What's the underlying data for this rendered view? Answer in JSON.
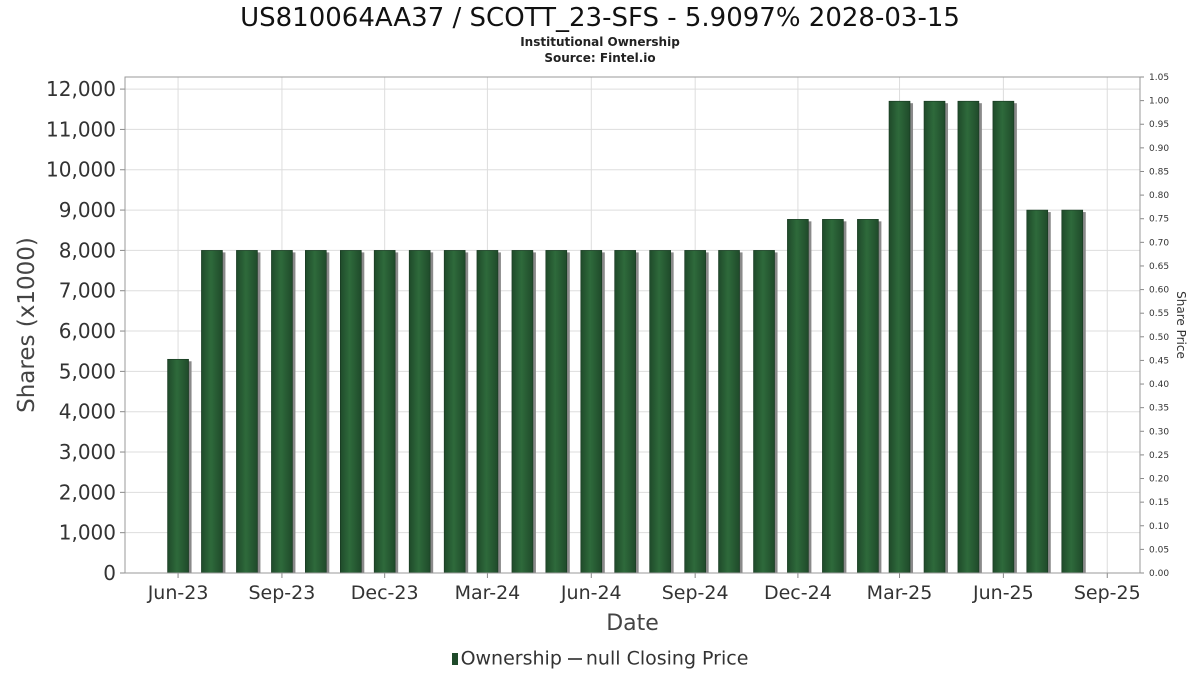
{
  "header": {
    "title": "US810064AA37 / SCOTT_23-SFS - 5.9097% 2028-03-15",
    "subtitle": "Institutional Ownership",
    "source": "Source: Fintel.io"
  },
  "legend": {
    "ownership_label": "Ownership",
    "price_label": "null Closing Price"
  },
  "colors": {
    "bar": "#1f4a2a",
    "bar_highlight": "#2e6a3b",
    "bar_shadow": "#8a8a8a",
    "grid": "#dddddd"
  },
  "chart_data": {
    "type": "bar",
    "title": "US810064AA37 / SCOTT_23-SFS - 5.9097% 2028-03-15",
    "subtitle": "Institutional Ownership",
    "xlabel": "Date",
    "ylabel": "Shares (x1000)",
    "y2label": "Share Price",
    "ylim": [
      0,
      12300
    ],
    "y2lim": [
      0,
      1.05
    ],
    "xlim": [
      "2023-04-15",
      "2025-09-30"
    ],
    "grid": true,
    "legend_position": "bottom",
    "yticks": [
      0,
      1000,
      2000,
      3000,
      4000,
      5000,
      6000,
      7000,
      8000,
      9000,
      10000,
      11000,
      12000
    ],
    "ytick_labels": [
      "0",
      "1,000",
      "2,000",
      "3,000",
      "4,000",
      "5,000",
      "6,000",
      "7,000",
      "8,000",
      "9,000",
      "10,000",
      "11,000",
      "12,000"
    ],
    "y2ticks": [
      0,
      0.05,
      0.1,
      0.15,
      0.2,
      0.25,
      0.3,
      0.35,
      0.4,
      0.45,
      0.5,
      0.55,
      0.6,
      0.65,
      0.7,
      0.75,
      0.8,
      0.85,
      0.9,
      0.95,
      1.0,
      1.05
    ],
    "y2tick_labels": [
      "0.00",
      "0.05",
      "0.10",
      "0.15",
      "0.20",
      "0.25",
      "0.30",
      "0.35",
      "0.40",
      "0.45",
      "0.50",
      "0.55",
      "0.60",
      "0.65",
      "0.70",
      "0.75",
      "0.80",
      "0.85",
      "0.90",
      "0.95",
      "1.00",
      "1.05"
    ],
    "xticks": [
      "2023-06-01",
      "2023-09-01",
      "2023-12-01",
      "2024-03-01",
      "2024-06-01",
      "2024-09-01",
      "2024-12-01",
      "2025-03-01",
      "2025-06-01",
      "2025-09-01"
    ],
    "xtick_labels": [
      "Jun-23",
      "Sep-23",
      "Dec-23",
      "Mar-24",
      "Jun-24",
      "Sep-24",
      "Dec-24",
      "Mar-25",
      "Jun-25",
      "Sep-25"
    ],
    "series": [
      {
        "name": "Ownership",
        "x": [
          "2023-06-01",
          "2023-07-01",
          "2023-08-01",
          "2023-09-01",
          "2023-10-01",
          "2023-11-01",
          "2023-12-01",
          "2024-01-01",
          "2024-02-01",
          "2024-03-01",
          "2024-04-01",
          "2024-05-01",
          "2024-06-01",
          "2024-07-01",
          "2024-08-01",
          "2024-09-01",
          "2024-10-01",
          "2024-11-01",
          "2024-12-01",
          "2025-01-01",
          "2025-02-01",
          "2025-03-01",
          "2025-04-01",
          "2025-05-01",
          "2025-06-01",
          "2025-07-01",
          "2025-08-01"
        ],
        "values": [
          5300,
          8000,
          8000,
          8000,
          8000,
          8000,
          8000,
          8000,
          8000,
          8000,
          8000,
          8000,
          8000,
          8000,
          8000,
          8000,
          8000,
          8000,
          8770,
          8770,
          8770,
          11700,
          11700,
          11700,
          11700,
          9000,
          9000
        ]
      }
    ]
  }
}
